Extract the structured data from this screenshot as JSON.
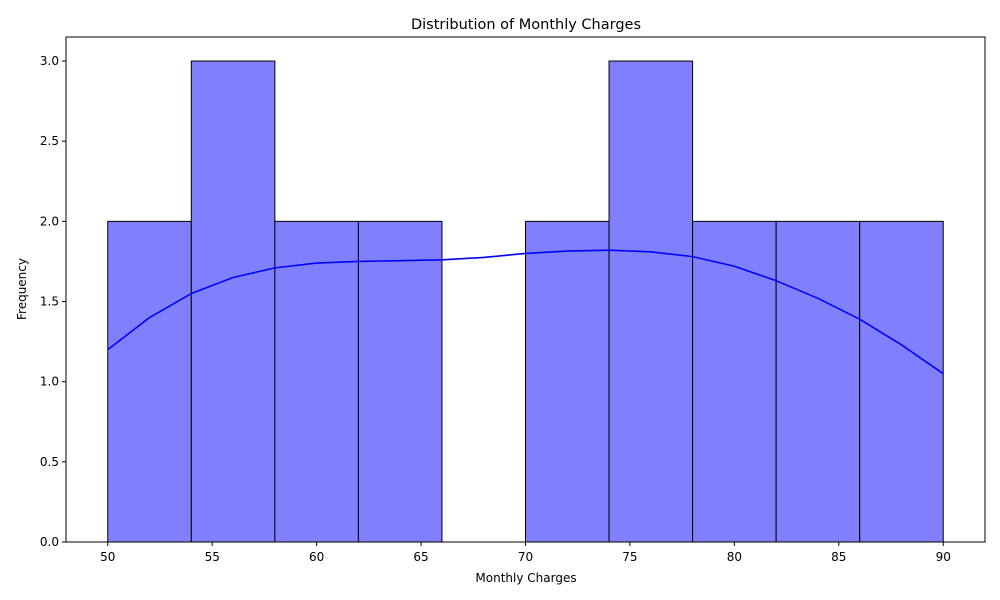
{
  "chart_data": {
    "type": "bar",
    "title": "Distribution of Monthly Charges",
    "xlabel": "Monthly Charges",
    "ylabel": "Frequency",
    "bins": [
      {
        "start": 50,
        "end": 54,
        "count": 2
      },
      {
        "start": 54,
        "end": 58,
        "count": 3
      },
      {
        "start": 58,
        "end": 62,
        "count": 2
      },
      {
        "start": 62,
        "end": 66,
        "count": 2
      },
      {
        "start": 66,
        "end": 70,
        "count": 0
      },
      {
        "start": 70,
        "end": 74,
        "count": 2
      },
      {
        "start": 74,
        "end": 78,
        "count": 3
      },
      {
        "start": 78,
        "end": 82,
        "count": 2
      },
      {
        "start": 82,
        "end": 86,
        "count": 2
      },
      {
        "start": 86,
        "end": 90,
        "count": 2
      }
    ],
    "kde": {
      "x": [
        50,
        52,
        54,
        56,
        58,
        60,
        62,
        64,
        66,
        68,
        70,
        72,
        74,
        76,
        78,
        80,
        82,
        84,
        86,
        88,
        90
      ],
      "y": [
        1.2,
        1.4,
        1.55,
        1.65,
        1.71,
        1.74,
        1.75,
        1.755,
        1.76,
        1.775,
        1.8,
        1.815,
        1.82,
        1.81,
        1.78,
        1.72,
        1.63,
        1.52,
        1.39,
        1.23,
        1.05
      ]
    },
    "xlim": [
      48,
      92
    ],
    "ylim": [
      0,
      3.15
    ],
    "xticks": [
      "50",
      "55",
      "60",
      "65",
      "70",
      "75",
      "80",
      "85",
      "90"
    ],
    "yticks": [
      "0.0",
      "0.5",
      "1.0",
      "1.5",
      "2.0",
      "2.5",
      "3.0"
    ],
    "grid": false,
    "colors": {
      "bar_fill": "#8080ff",
      "bar_edge": "#000000",
      "kde_line": "#0000ff"
    }
  }
}
